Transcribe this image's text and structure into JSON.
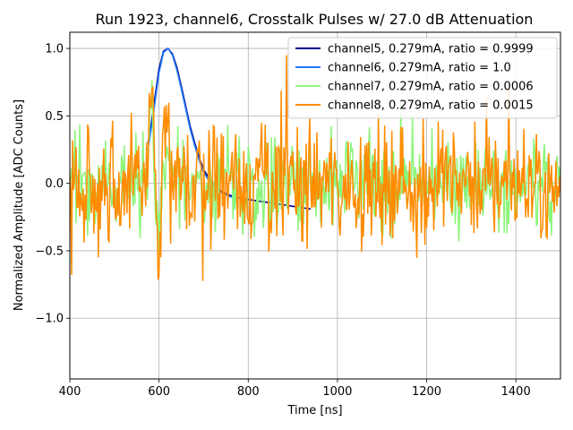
{
  "chart_data": {
    "type": "line",
    "title": "Run 1923, channel6, Crosstalk Pulses w/ 27.0 dB Attenuation",
    "xlabel": "Time [ns]",
    "ylabel": "Normalized Amplitude [ADC Counts]",
    "xlim": [
      400,
      1500
    ],
    "ylim": [
      -1.45,
      1.12
    ],
    "xticks": [
      400,
      600,
      800,
      1000,
      1200,
      1400
    ],
    "xtick_labels": [
      "400",
      "600",
      "800",
      "1000",
      "1200",
      "1400"
    ],
    "yticks": [
      -1.0,
      -0.5,
      0.0,
      0.5,
      1.0
    ],
    "ytick_labels": [
      "−1.0",
      "−0.5",
      "0.0",
      "0.5",
      "1.0"
    ],
    "grid": true,
    "legend_position": "top-right",
    "series": [
      {
        "name": "channel5, 0.279mA, ratio = 0.9999",
        "color": "#00008b",
        "shape": "pulse",
        "x": [
          575,
          580,
          590,
          600,
          610,
          620,
          630,
          640,
          650,
          660,
          670,
          680,
          690,
          700,
          720,
          740,
          760,
          780,
          800,
          820,
          840,
          860,
          880,
          900,
          920,
          940
        ],
        "y": [
          0.3,
          0.38,
          0.62,
          0.85,
          0.98,
          1.0,
          0.96,
          0.86,
          0.72,
          0.57,
          0.42,
          0.3,
          0.19,
          0.1,
          0.0,
          -0.06,
          -0.09,
          -0.11,
          -0.12,
          -0.13,
          -0.14,
          -0.15,
          -0.16,
          -0.17,
          -0.18,
          -0.19
        ]
      },
      {
        "name": "channel6, 0.279mA, ratio = 1.0",
        "color": "#1f77ff",
        "shape": "pulse",
        "x": [
          575,
          580,
          590,
          600,
          610,
          620,
          630,
          640,
          650,
          660,
          670,
          680,
          690,
          700,
          720,
          740,
          760,
          780,
          800
        ],
        "y": [
          0.25,
          0.35,
          0.58,
          0.82,
          0.97,
          1.0,
          0.95,
          0.84,
          0.7,
          0.55,
          0.4,
          0.28,
          0.17,
          0.08,
          -0.02,
          -0.07,
          -0.1,
          -0.11,
          -0.12
        ]
      },
      {
        "name": "channel7, 0.279mA, ratio = 0.0006",
        "color": "#8cf57a",
        "shape": "noise",
        "x": [
          400,
          1500
        ],
        "y": [
          0.0,
          0.0
        ]
      },
      {
        "name": "channel8, 0.279mA, ratio = 0.0015",
        "color": "#ff8c00",
        "shape": "noise",
        "x": [
          400,
          1500
        ],
        "y": [
          0.0,
          0.0
        ]
      }
    ]
  }
}
